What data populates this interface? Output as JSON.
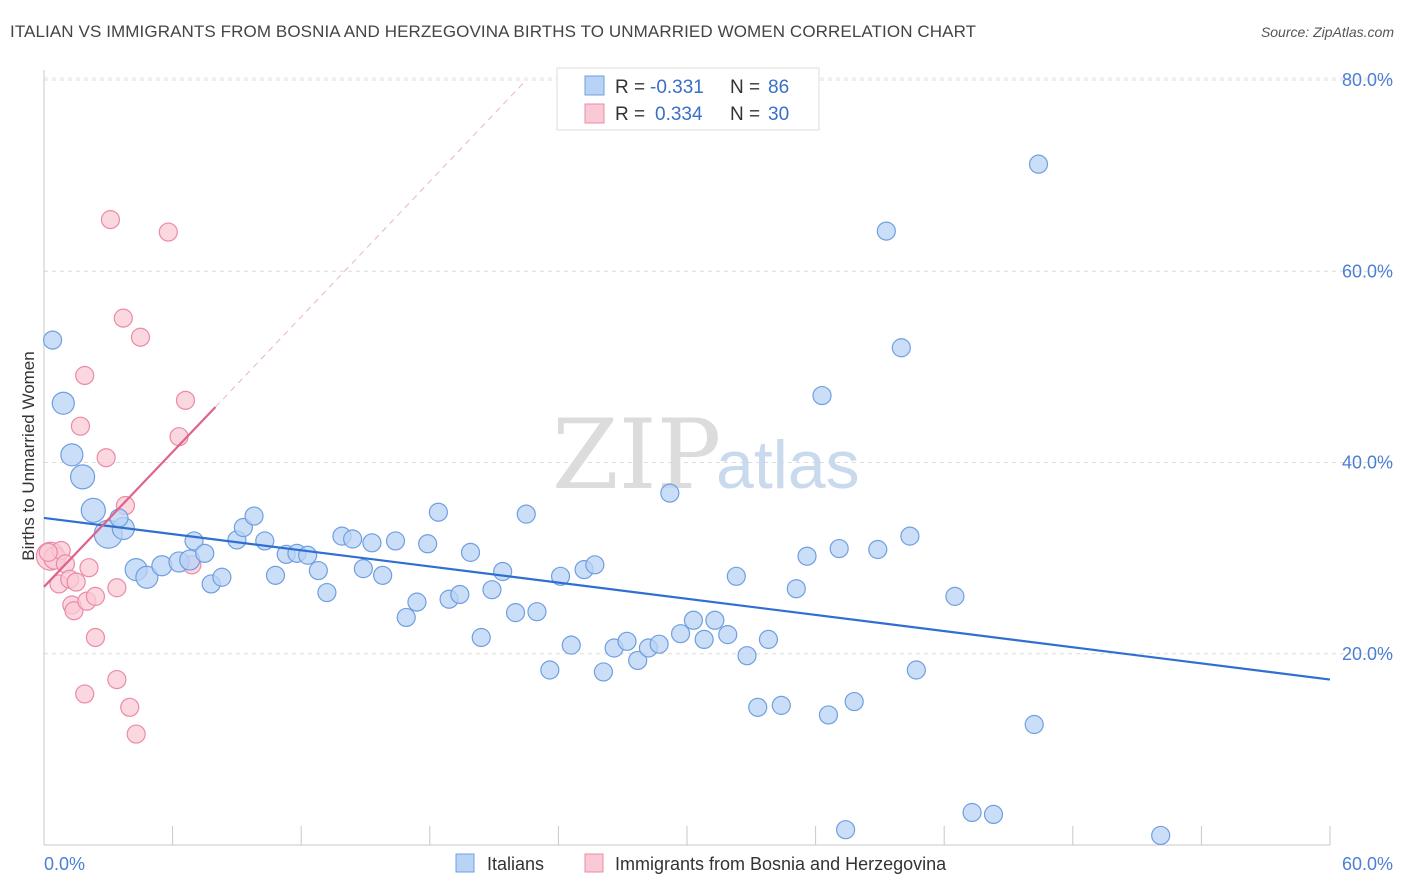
{
  "header": {
    "title": "ITALIAN VS IMMIGRANTS FROM BOSNIA AND HERZEGOVINA BIRTHS TO UNMARRIED WOMEN CORRELATION CHART",
    "source": "Source: ZipAtlas.com"
  },
  "watermark": {
    "zip": "ZIP",
    "atlas": "atlas"
  },
  "legend": {
    "r_label": "R =",
    "n_label": "N =",
    "rows": [
      {
        "r": "-0.331",
        "n": "86",
        "fill": "#b9d3f5",
        "stroke": "#6f9fe0"
      },
      {
        "r": "0.334",
        "n": "30",
        "fill": "#f9c9d6",
        "stroke": "#ec8aa6"
      }
    ]
  },
  "bottom_legend": [
    {
      "label": "Italians",
      "fill": "#b9d3f5",
      "stroke": "#6f9fe0"
    },
    {
      "label": "Immigrants from Bosnia and Herzegovina",
      "fill": "#f9c9d6",
      "stroke": "#ec8aa6"
    }
  ],
  "chart_data": {
    "type": "scatter",
    "ylabel": "Births to Unmarried Women",
    "xlim": [
      0,
      60
    ],
    "ylim": [
      0,
      80
    ],
    "x_ticks": [
      "0.0%",
      "60.0%"
    ],
    "y_ticks": [
      {
        "value": 80,
        "label": "80.0%"
      },
      {
        "value": 60,
        "label": "60.0%"
      },
      {
        "value": 40,
        "label": "40.0%"
      },
      {
        "value": 20,
        "label": "20.0%"
      }
    ],
    "grid": "horizontal dashed",
    "colors": {
      "italians": "#6f9fe0",
      "italians_fill": "#b9d3f5",
      "italians_line": "#2e6fd0",
      "bosnia": "#ec8aa6",
      "bosnia_fill": "#f9c9d6",
      "bosnia_line": "#e0628a"
    },
    "series": [
      {
        "name": "Italians",
        "trend": {
          "x": [
            0,
            60
          ],
          "y": [
            34.2,
            17.3
          ]
        },
        "points": [
          [
            0.4,
            52.8,
            9
          ],
          [
            0.9,
            46.2,
            11
          ],
          [
            1.3,
            40.8,
            11
          ],
          [
            1.8,
            38.5,
            12
          ],
          [
            2.3,
            35.0,
            12
          ],
          [
            3.0,
            32.5,
            14
          ],
          [
            3.7,
            33.1,
            11
          ],
          [
            4.3,
            28.8,
            11
          ],
          [
            4.8,
            28.0,
            11
          ],
          [
            5.5,
            29.2,
            10
          ],
          [
            6.3,
            29.6,
            10
          ],
          [
            6.8,
            29.8,
            10
          ],
          [
            7.0,
            31.8,
            9
          ],
          [
            7.5,
            30.5,
            9
          ],
          [
            7.8,
            27.3,
            9
          ],
          [
            8.3,
            28.0,
            9
          ],
          [
            9.0,
            31.9,
            9
          ],
          [
            9.3,
            33.2,
            9
          ],
          [
            9.8,
            34.4,
            9
          ],
          [
            10.3,
            31.8,
            9
          ],
          [
            10.8,
            28.2,
            9
          ],
          [
            11.3,
            30.4,
            9
          ],
          [
            11.8,
            30.5,
            9
          ],
          [
            12.3,
            30.3,
            9
          ],
          [
            12.8,
            28.7,
            9
          ],
          [
            13.2,
            26.4,
            9
          ],
          [
            13.9,
            32.3,
            9
          ],
          [
            14.4,
            32.0,
            9
          ],
          [
            14.9,
            28.9,
            9
          ],
          [
            15.3,
            31.6,
            9
          ],
          [
            15.8,
            28.2,
            9
          ],
          [
            16.4,
            31.8,
            9
          ],
          [
            16.9,
            23.8,
            9
          ],
          [
            17.4,
            25.4,
            9
          ],
          [
            17.9,
            31.5,
            9
          ],
          [
            18.4,
            34.8,
            9
          ],
          [
            18.9,
            25.7,
            9
          ],
          [
            19.4,
            26.2,
            9
          ],
          [
            19.9,
            30.6,
            9
          ],
          [
            20.4,
            21.7,
            9
          ],
          [
            20.9,
            26.7,
            9
          ],
          [
            21.4,
            28.6,
            9
          ],
          [
            22.0,
            24.3,
            9
          ],
          [
            22.5,
            34.6,
            9
          ],
          [
            23.0,
            24.4,
            9
          ],
          [
            23.6,
            18.3,
            9
          ],
          [
            24.1,
            28.1,
            9
          ],
          [
            24.6,
            20.9,
            9
          ],
          [
            25.2,
            28.8,
            9
          ],
          [
            25.7,
            29.3,
            9
          ],
          [
            26.1,
            18.1,
            9
          ],
          [
            26.6,
            20.6,
            9
          ],
          [
            27.2,
            21.3,
            9
          ],
          [
            27.7,
            19.3,
            9
          ],
          [
            28.2,
            20.6,
            9
          ],
          [
            28.7,
            21.0,
            9
          ],
          [
            29.2,
            36.8,
            9
          ],
          [
            29.7,
            22.1,
            9
          ],
          [
            30.3,
            23.5,
            9
          ],
          [
            30.8,
            21.5,
            9
          ],
          [
            31.3,
            23.5,
            9
          ],
          [
            31.9,
            22.0,
            9
          ],
          [
            32.3,
            28.1,
            9
          ],
          [
            32.8,
            19.8,
            9
          ],
          [
            33.3,
            14.4,
            9
          ],
          [
            33.8,
            21.5,
            9
          ],
          [
            34.4,
            14.6,
            9
          ],
          [
            35.1,
            26.8,
            9
          ],
          [
            35.6,
            30.2,
            9
          ],
          [
            36.3,
            47.0,
            9
          ],
          [
            36.6,
            13.6,
            9
          ],
          [
            37.1,
            31.0,
            9
          ],
          [
            37.8,
            15.0,
            9
          ],
          [
            37.4,
            1.6,
            9
          ],
          [
            38.9,
            30.9,
            9
          ],
          [
            39.3,
            64.2,
            9
          ],
          [
            40.0,
            52.0,
            9
          ],
          [
            40.4,
            32.3,
            9
          ],
          [
            40.7,
            18.3,
            9
          ],
          [
            42.5,
            26.0,
            9
          ],
          [
            43.3,
            3.4,
            9
          ],
          [
            44.3,
            3.2,
            9
          ],
          [
            46.4,
            71.2,
            9
          ],
          [
            46.2,
            12.6,
            9
          ],
          [
            52.1,
            1.0,
            9
          ],
          [
            3.5,
            34.2,
            9
          ]
        ]
      },
      {
        "name": "Immigrants from Bosnia and Herzegovina",
        "trend": {
          "x": [
            0,
            8.0
          ],
          "y": [
            27.0,
            45.8
          ]
        },
        "trend_dashed": {
          "x": [
            8.0,
            22.5
          ],
          "y": [
            45.8,
            80.0
          ]
        },
        "points": [
          [
            0.3,
            30.2,
            14
          ],
          [
            0.5,
            30.0,
            11
          ],
          [
            0.7,
            27.3,
            9
          ],
          [
            0.8,
            30.8,
            9
          ],
          [
            1.0,
            29.4,
            9
          ],
          [
            1.2,
            27.8,
            9
          ],
          [
            1.3,
            25.1,
            9
          ],
          [
            1.4,
            24.5,
            9
          ],
          [
            1.5,
            27.5,
            9
          ],
          [
            1.7,
            43.8,
            9
          ],
          [
            1.9,
            15.8,
            9
          ],
          [
            1.9,
            49.1,
            9
          ],
          [
            2.0,
            25.5,
            9
          ],
          [
            2.1,
            29.0,
            9
          ],
          [
            2.4,
            21.7,
            9
          ],
          [
            2.4,
            26.0,
            9
          ],
          [
            2.9,
            40.5,
            9
          ],
          [
            3.1,
            65.4,
            9
          ],
          [
            3.4,
            26.9,
            9
          ],
          [
            3.4,
            17.3,
            9
          ],
          [
            3.7,
            55.1,
            9
          ],
          [
            3.8,
            35.5,
            9
          ],
          [
            4.0,
            14.4,
            9
          ],
          [
            4.3,
            11.6,
            9
          ],
          [
            4.5,
            53.1,
            9
          ],
          [
            5.8,
            64.1,
            9
          ],
          [
            6.3,
            42.7,
            9
          ],
          [
            6.6,
            46.5,
            9
          ],
          [
            6.9,
            29.3,
            9
          ],
          [
            0.2,
            30.6,
            9
          ]
        ]
      }
    ]
  }
}
